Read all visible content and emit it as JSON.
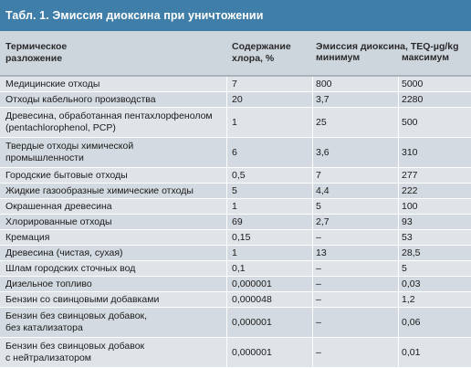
{
  "title": "Табл. 1. Эмиссия диоксина при уничтожении",
  "header": {
    "col1": [
      "Термическое",
      "разложение"
    ],
    "col2": [
      "Содержание",
      "хлора, %"
    ],
    "group": "Эмиссия диоксина, TEQ-µg/kg",
    "min": "минимум",
    "max": "максимум"
  },
  "rows": [
    {
      "name": [
        "Медицинские отходы"
      ],
      "chlorine": "7",
      "min": "800",
      "max": "5000"
    },
    {
      "name": [
        "Отходы кабельного производства"
      ],
      "chlorine": "20",
      "min": "3,7",
      "max": "2280"
    },
    {
      "name": [
        "Древесина, обработанная пентахлорфенолом",
        "(pentachlorophenol, PCP)"
      ],
      "chlorine": "1",
      "min": "25",
      "max": "500"
    },
    {
      "name": [
        "Твердые отходы химической",
        "промышленности"
      ],
      "chlorine": "6",
      "min": "3,6",
      "max": "310"
    },
    {
      "name": [
        "Городские бытовые отходы"
      ],
      "chlorine": "0,5",
      "min": "7",
      "max": "277"
    },
    {
      "name": [
        "Жидкие газообразные  химические отходы"
      ],
      "chlorine": "5",
      "min": "4,4",
      "max": "222"
    },
    {
      "name": [
        "Окрашенная древесина"
      ],
      "chlorine": "1",
      "min": "5",
      "max": "100"
    },
    {
      "name": [
        "Хлорированные отходы"
      ],
      "chlorine": "69",
      "min": "2,7",
      "max": "93"
    },
    {
      "name": [
        "Кремация"
      ],
      "chlorine": "0,15",
      "min": "–",
      "max": "53"
    },
    {
      "name": [
        "Древесина (чистая, сухая)"
      ],
      "chlorine": "1",
      "min": "13",
      "max": "28,5"
    },
    {
      "name": [
        "Шлам городских сточных вод"
      ],
      "chlorine": "0,1",
      "min": "–",
      "max": "5"
    },
    {
      "name": [
        "Дизельное топливо"
      ],
      "chlorine": "0,000001",
      "min": "–",
      "max": "0,03"
    },
    {
      "name": [
        "Бензин со свинцовыми добавками"
      ],
      "chlorine": "0,000048",
      "min": "–",
      "max": "1,2"
    },
    {
      "name": [
        "Бензин без свинцовых добавок,",
        "без катализатора"
      ],
      "chlorine": "0,000001",
      "min": "–",
      "max": "0,06"
    },
    {
      "name": [
        "Бензин без свинцовых добавок",
        "с нейтрализатором"
      ],
      "chlorine": "0,000001",
      "min": "–",
      "max": "0,01"
    }
  ]
}
